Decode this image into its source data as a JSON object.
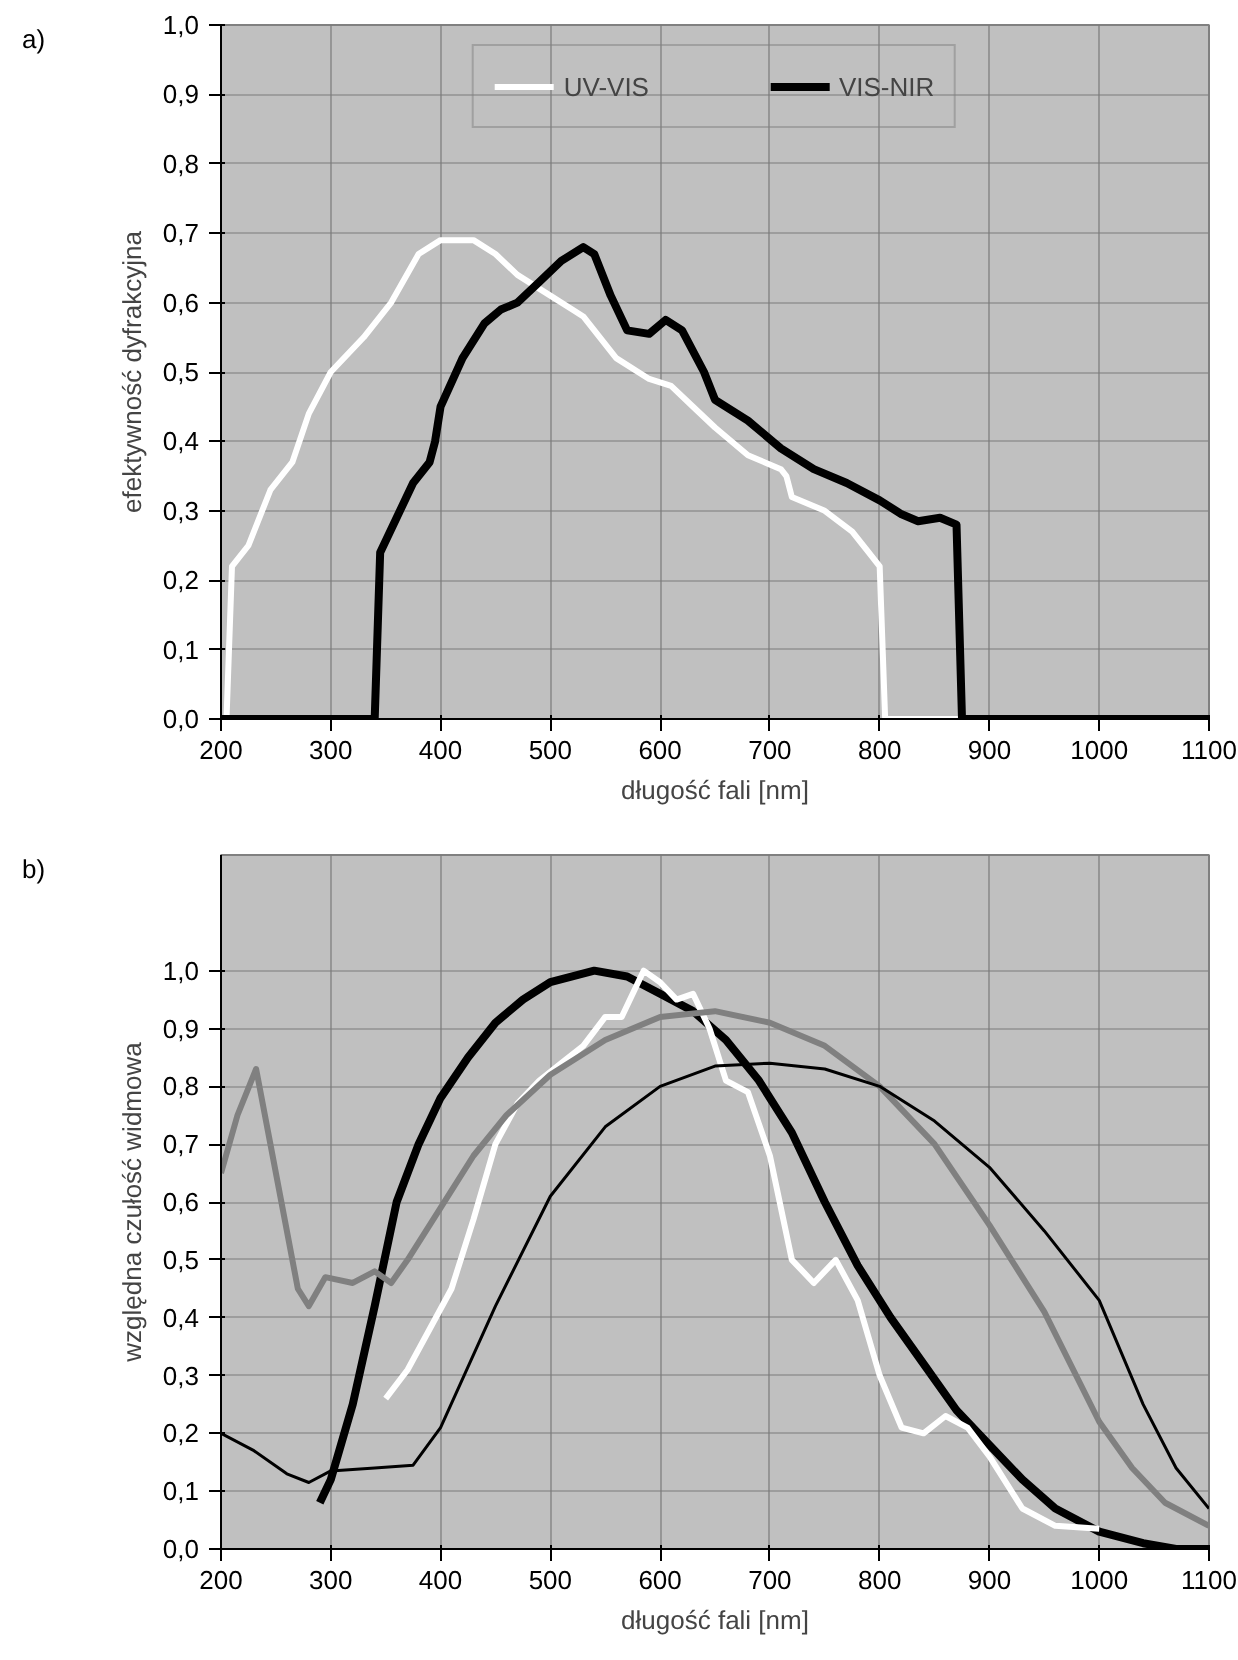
{
  "chart_data": [
    {
      "type": "line",
      "annotations": [
        "a)"
      ],
      "xlabel": "długość fali [nm]",
      "ylabel": "efektywność dyfrakcyjna",
      "xlim": [
        200,
        1100
      ],
      "xticks": [
        200,
        300,
        400,
        500,
        600,
        700,
        800,
        900,
        1000,
        1100
      ],
      "ylim": [
        0,
        1
      ],
      "yticks": [
        {
          "value": 0,
          "label": "0,0"
        },
        {
          "value": 0.1,
          "label": "0,1"
        },
        {
          "value": 0.2,
          "label": "0,2"
        },
        {
          "value": 0.3,
          "label": "0,3"
        },
        {
          "value": 0.4,
          "label": "0,4"
        },
        {
          "value": 0.5,
          "label": "0,5"
        },
        {
          "value": 0.6,
          "label": "0,6"
        },
        {
          "value": 0.7,
          "label": "0,7"
        },
        {
          "value": 0.8,
          "label": "0,8"
        },
        {
          "value": 0.9,
          "label": "0,9"
        },
        {
          "value": 1,
          "label": "1,0"
        }
      ],
      "grid": true,
      "legend": "top",
      "series": [
        {
          "name": "UV-VIS",
          "color": "#ffffff",
          "x": [
            200,
            205,
            210,
            225,
            245,
            265,
            280,
            300,
            330,
            355,
            380,
            400,
            430,
            450,
            470,
            500,
            520,
            530,
            560,
            590,
            610,
            630,
            650,
            680,
            710,
            715,
            720,
            750,
            775,
            790,
            800,
            805,
            1100
          ],
          "values": [
            0,
            0,
            0.22,
            0.25,
            0.33,
            0.37,
            0.44,
            0.5,
            0.55,
            0.6,
            0.67,
            0.69,
            0.69,
            0.67,
            0.64,
            0.61,
            0.59,
            0.58,
            0.52,
            0.49,
            0.48,
            0.45,
            0.42,
            0.38,
            0.36,
            0.35,
            0.32,
            0.3,
            0.27,
            0.24,
            0.22,
            0,
            0
          ]
        },
        {
          "name": "VIS-NIR",
          "color": "#000000",
          "x": [
            200,
            340,
            345,
            360,
            375,
            390,
            395,
            400,
            420,
            440,
            455,
            470,
            490,
            510,
            530,
            540,
            555,
            570,
            590,
            605,
            620,
            640,
            650,
            680,
            710,
            740,
            770,
            800,
            820,
            835,
            855,
            870,
            875,
            1100
          ],
          "values": [
            0,
            0,
            0.24,
            0.29,
            0.34,
            0.37,
            0.4,
            0.45,
            0.52,
            0.57,
            0.59,
            0.6,
            0.63,
            0.66,
            0.68,
            0.67,
            0.61,
            0.56,
            0.555,
            0.575,
            0.56,
            0.5,
            0.46,
            0.43,
            0.39,
            0.36,
            0.34,
            0.315,
            0.295,
            0.285,
            0.29,
            0.28,
            0,
            0
          ]
        }
      ]
    },
    {
      "type": "line",
      "annotations": [
        "b)"
      ],
      "xlabel": "długość fali [nm]",
      "ylabel": "względna czułość widmowa",
      "xlim": [
        200,
        1100
      ],
      "xticks": [
        200,
        300,
        400,
        500,
        600,
        700,
        800,
        900,
        1000,
        1100
      ],
      "ylim": [
        0,
        1.2
      ],
      "yticks": [
        {
          "value": 0,
          "label": "0,0"
        },
        {
          "value": 0.1,
          "label": "0,1"
        },
        {
          "value": 0.2,
          "label": "0,2"
        },
        {
          "value": 0.3,
          "label": "0,3"
        },
        {
          "value": 0.4,
          "label": "0,4"
        },
        {
          "value": 0.5,
          "label": "0,5"
        },
        {
          "value": 0.6,
          "label": "0,6"
        },
        {
          "value": 0.7,
          "label": "0,7"
        },
        {
          "value": 0.8,
          "label": "0,8"
        },
        {
          "value": 0.9,
          "label": "0,9"
        },
        {
          "value": 1,
          "label": "1,0"
        }
      ],
      "grid": true,
      "series": [
        {
          "color": "#000000",
          "x": [
            290,
            300,
            320,
            340,
            360,
            380,
            400,
            425,
            450,
            475,
            500,
            540,
            570,
            600,
            630,
            660,
            690,
            720,
            750,
            780,
            810,
            840,
            870,
            900,
            930,
            960,
            1000,
            1040,
            1070,
            1100
          ],
          "values": [
            0.08,
            0.12,
            0.25,
            0.42,
            0.6,
            0.7,
            0.78,
            0.85,
            0.91,
            0.95,
            0.98,
            1.0,
            0.99,
            0.96,
            0.93,
            0.88,
            0.81,
            0.72,
            0.6,
            0.49,
            0.4,
            0.32,
            0.24,
            0.18,
            0.12,
            0.07,
            0.03,
            0.01,
            0,
            0
          ]
        },
        {
          "color": "#ffffff",
          "x": [
            350,
            370,
            390,
            410,
            430,
            450,
            470,
            490,
            510,
            530,
            550,
            565,
            585,
            600,
            615,
            630,
            645,
            660,
            680,
            700,
            720,
            740,
            760,
            780,
            800,
            820,
            840,
            860,
            880,
            900,
            930,
            960,
            1000
          ],
          "values": [
            0.26,
            0.31,
            0.38,
            0.45,
            0.57,
            0.7,
            0.77,
            0.81,
            0.84,
            0.87,
            0.92,
            0.92,
            1.0,
            0.98,
            0.95,
            0.96,
            0.9,
            0.81,
            0.79,
            0.68,
            0.5,
            0.46,
            0.5,
            0.43,
            0.3,
            0.21,
            0.2,
            0.23,
            0.21,
            0.16,
            0.07,
            0.04,
            0.035
          ]
        },
        {
          "color": "#808080",
          "x": [
            200,
            215,
            232,
            245,
            260,
            270,
            280,
            295,
            320,
            340,
            355,
            370,
            400,
            430,
            460,
            500,
            550,
            600,
            650,
            700,
            750,
            800,
            850,
            900,
            950,
            1000,
            1030,
            1060,
            1100
          ],
          "values": [
            0.65,
            0.75,
            0.83,
            0.7,
            0.55,
            0.45,
            0.42,
            0.47,
            0.46,
            0.48,
            0.46,
            0.5,
            0.59,
            0.68,
            0.75,
            0.82,
            0.88,
            0.92,
            0.93,
            0.91,
            0.87,
            0.8,
            0.7,
            0.56,
            0.41,
            0.22,
            0.14,
            0.08,
            0.04
          ]
        },
        {
          "color": "#000000",
          "x": [
            200,
            230,
            260,
            280,
            300,
            340,
            375,
            400,
            450,
            500,
            550,
            600,
            650,
            700,
            750,
            800,
            850,
            900,
            950,
            1000,
            1040,
            1070,
            1100
          ],
          "values": [
            0.2,
            0.17,
            0.13,
            0.115,
            0.135,
            0.14,
            0.145,
            0.21,
            0.42,
            0.61,
            0.73,
            0.8,
            0.835,
            0.84,
            0.83,
            0.8,
            0.74,
            0.66,
            0.55,
            0.43,
            0.25,
            0.14,
            0.07
          ]
        }
      ]
    }
  ]
}
